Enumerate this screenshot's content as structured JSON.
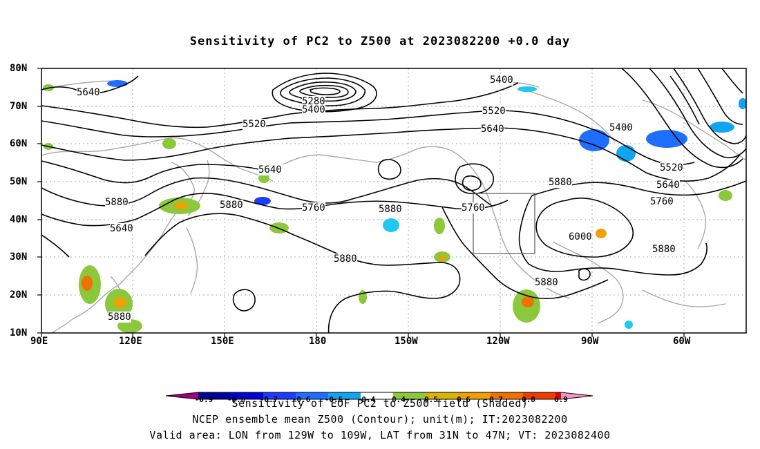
{
  "title": "Sensitivity of PC2 to Z500 at 2023082200 +0.0 day",
  "lat_labels": [
    "80N",
    "70N",
    "60N",
    "50N",
    "40N",
    "30N",
    "20N",
    "10N"
  ],
  "lon_labels": [
    "90E",
    "120E",
    "150E",
    "180",
    "150W",
    "120W",
    "90W",
    "60W"
  ],
  "contour_labels": [
    "5640",
    "5400",
    "5280",
    "5400",
    "5520",
    "5520",
    "5640",
    "5400",
    "5520",
    "5640",
    "5640",
    "5760",
    "5880",
    "5760",
    "5880",
    "5880",
    "5880",
    "5760",
    "6000",
    "5880",
    "5880",
    "5880"
  ],
  "colorbar": {
    "labels": [
      "-0.9",
      "-0.8",
      "-0.7",
      "-0.6",
      "-0.5",
      "-0.4",
      "0.4",
      "0.5",
      "0.6",
      "0.7",
      "0.8",
      "0.9"
    ],
    "colors": [
      "#a0007e",
      "#00009a",
      "#0000d8",
      "#1c3cff",
      "#1e6eff",
      "#0fa5f0",
      "#1ec8f0",
      "#ffffff",
      "#8cc83c",
      "#dcb400",
      "#f0a000",
      "#f07000",
      "#f03c00",
      "#e80000",
      "#f496c8"
    ]
  },
  "captions": {
    "line1": "Sensitivity of EOF PC2 to Z500 field (Shaded)",
    "line2": "NCEP ensemble mean Z500 (Contour); unit(m); IT:2023082200",
    "line3": "Valid area: LON from 129W to 109W, LAT from 31N to 47N; VT: 2023082400"
  },
  "valid_area": {
    "lon_from": "129W",
    "lon_to": "109W",
    "lat_from": "31N",
    "lat_to": "47N"
  }
}
